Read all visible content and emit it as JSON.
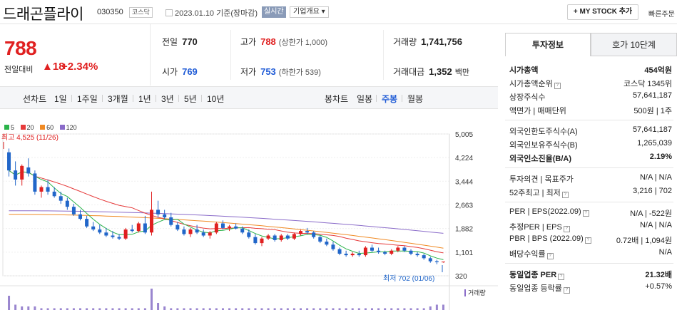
{
  "header": {
    "company_name": "드래곤플라이",
    "code": "030350",
    "market": "코스닥",
    "date_text": "2023.01.10 기준(장마감)",
    "realtime_label": "실시간",
    "company_info_label": "기업개요 ▾",
    "mystock_label": "+ MY STOCK 추가",
    "quick_order_label": "빠른주문"
  },
  "price": {
    "current": "788",
    "change_label": "전일대비",
    "change_amount": "▲18",
    "change_pct": "+2.34%"
  },
  "summary": {
    "prev_close_label": "전일",
    "prev_close": "770",
    "high_label": "고가",
    "high": "788",
    "upper_limit": "(상한가 1,000)",
    "volume_label": "거래량",
    "volume": "1,741,756",
    "open_label": "시가",
    "open": "769",
    "low_label": "저가",
    "low": "753",
    "lower_limit": "(하한가 539)",
    "amount_label": "거래대금",
    "amount": "1,352",
    "amount_unit": "백만"
  },
  "chart_tabs": {
    "line_label": "선차트",
    "line_periods": [
      "1일",
      "1주일",
      "3개월",
      "1년",
      "3년",
      "5년",
      "10년"
    ],
    "candle_label": "봉차트",
    "candle_periods": [
      "일봉",
      "주봉",
      "월봉"
    ],
    "active_candle": "주봉"
  },
  "chart_data": {
    "type": "candlestick",
    "legend": [
      {
        "name": "5",
        "color": "#2bb34a"
      },
      {
        "name": "20",
        "color": "#e63b3b"
      },
      {
        "name": "60",
        "color": "#f08a24"
      },
      {
        "name": "120",
        "color": "#8a6bc9"
      }
    ],
    "y_ticks": [
      "5,005",
      "4,224",
      "3,444",
      "2,663",
      "1,882",
      "1,101",
      "320"
    ],
    "y_tick_values": [
      5005,
      4224,
      3444,
      2663,
      1882,
      1101,
      320
    ],
    "ylim": [
      320,
      5005
    ],
    "high_annotation": "최고 4,525 (11/26)",
    "low_annotation": "최저 702 (01/06)",
    "volume_label": "거래량",
    "colors": {
      "up": "#e02020",
      "down": "#2166c9",
      "ma5": "#2bb34a",
      "ma20": "#e63b3b",
      "ma60": "#f08a24",
      "ma120": "#8a6bc9"
    },
    "candles": [
      [
        4400,
        4525,
        3600,
        3800
      ],
      [
        3800,
        4100,
        3300,
        3500
      ],
      [
        3500,
        4000,
        3300,
        3950
      ],
      [
        3900,
        4200,
        3600,
        3700
      ],
      [
        3700,
        3800,
        3000,
        3100
      ],
      [
        3100,
        3300,
        2900,
        3250
      ],
      [
        3250,
        3500,
        3000,
        3100
      ],
      [
        3100,
        3250,
        2900,
        2950
      ],
      [
        2950,
        3100,
        2700,
        2800
      ],
      [
        2800,
        2900,
        2500,
        2600
      ],
      [
        2600,
        2700,
        2300,
        2350
      ],
      [
        2350,
        2500,
        2150,
        2200
      ],
      [
        2200,
        2300,
        1900,
        1950
      ],
      [
        1950,
        2100,
        1800,
        1850
      ],
      [
        1850,
        2000,
        1700,
        1750
      ],
      [
        1750,
        1900,
        1600,
        1650
      ],
      [
        1650,
        1800,
        1550,
        1600
      ],
      [
        1600,
        1700,
        1500,
        1550
      ],
      [
        1550,
        1900,
        1500,
        1850
      ],
      [
        1850,
        2000,
        1750,
        1800
      ],
      [
        1800,
        2100,
        1750,
        2050
      ],
      [
        2050,
        2300,
        1700,
        1750
      ],
      [
        1750,
        3100,
        1650,
        2500
      ],
      [
        2500,
        2800,
        2250,
        2350
      ],
      [
        2350,
        2500,
        2200,
        2250
      ],
      [
        2250,
        2400,
        1950,
        2000
      ],
      [
        2000,
        2100,
        1800,
        1850
      ],
      [
        1850,
        1950,
        1650,
        1700
      ],
      [
        1700,
        1900,
        1600,
        1850
      ],
      [
        1850,
        2000,
        1700,
        1750
      ],
      [
        1750,
        1850,
        1600,
        1650
      ],
      [
        1650,
        1800,
        1550,
        1750
      ],
      [
        1750,
        2100,
        1700,
        2050
      ],
      [
        2050,
        2150,
        1850,
        1900
      ],
      [
        1900,
        2000,
        1800,
        1950
      ],
      [
        1950,
        2050,
        1850,
        1880
      ],
      [
        1880,
        1950,
        1700,
        1750
      ],
      [
        1750,
        1850,
        1550,
        1600
      ],
      [
        1600,
        1700,
        1350,
        1400
      ],
      [
        1400,
        1600,
        1300,
        1550
      ],
      [
        1550,
        1700,
        1500,
        1650
      ],
      [
        1650,
        1700,
        1450,
        1500
      ],
      [
        1500,
        1700,
        1450,
        1650
      ],
      [
        1650,
        1700,
        1500,
        1550
      ],
      [
        1550,
        1750,
        1500,
        1700
      ],
      [
        1700,
        1850,
        1650,
        1800
      ],
      [
        1800,
        1900,
        1700,
        1750
      ],
      [
        1750,
        1800,
        1550,
        1600
      ],
      [
        1600,
        1650,
        1400,
        1450
      ],
      [
        1450,
        1550,
        1300,
        1350
      ],
      [
        1350,
        1450,
        1150,
        1200
      ],
      [
        1200,
        1250,
        1000,
        1050
      ],
      [
        1050,
        1150,
        950,
        1000
      ],
      [
        1000,
        1100,
        950,
        1050
      ],
      [
        1050,
        1150,
        950,
        1000
      ],
      [
        1000,
        1300,
        950,
        1250
      ],
      [
        1250,
        1350,
        1100,
        1150
      ],
      [
        1150,
        1250,
        1050,
        1100
      ],
      [
        1100,
        1150,
        1000,
        1050
      ],
      [
        1050,
        1200,
        1000,
        1150
      ],
      [
        1150,
        1300,
        1100,
        1250
      ],
      [
        1250,
        1300,
        1100,
        1150
      ],
      [
        1150,
        1200,
        1000,
        1050
      ],
      [
        1050,
        1100,
        950,
        1000
      ],
      [
        1000,
        1050,
        850,
        900
      ],
      [
        900,
        950,
        750,
        800
      ],
      [
        800,
        850,
        702,
        770
      ],
      [
        769,
        788,
        753,
        788
      ]
    ],
    "volumes": [
      8,
      3,
      2,
      2,
      2,
      1,
      1,
      1,
      1,
      1,
      1,
      1,
      1,
      1,
      1,
      1,
      1,
      1,
      1,
      1,
      1,
      1,
      12,
      4,
      2,
      1,
      1,
      1,
      1,
      1,
      1,
      1,
      1,
      1,
      1,
      1,
      1,
      1,
      1,
      1,
      1,
      1,
      1,
      1,
      1,
      1,
      1,
      1,
      1,
      1,
      1,
      1,
      1,
      1,
      1,
      1,
      1,
      1,
      1,
      1,
      1,
      1,
      1,
      1,
      1,
      2,
      3,
      3
    ]
  },
  "invest_info": {
    "tab_active": "투자정보",
    "tab_other": "호가 10단계",
    "rows": [
      {
        "k": "시가총액",
        "v": "454억원",
        "bold": true
      },
      {
        "k": "시가총액순위",
        "v": "코스닥 1345위",
        "q": true
      },
      {
        "k": "상장주식수",
        "v": "57,641,187"
      },
      {
        "k": "액면가 | 매매단위",
        "v": "500원 | 1주"
      }
    ],
    "foreign_rows": [
      {
        "k": "외국인한도주식수(A)",
        "v": "57,641,187"
      },
      {
        "k": "외국인보유주식수(B)",
        "v": "1,265,039"
      },
      {
        "k": "외국인소진율(B/A)",
        "v": "2.19%",
        "bold": true
      }
    ],
    "opinion_rows": [
      {
        "k": "투자의견 | 목표주가",
        "v": "N/A | N/A"
      },
      {
        "k": "52주최고 | 최저",
        "v": "3,216 | 702",
        "q": true
      }
    ],
    "per_rows": [
      {
        "k": "PER | EPS(2022.09)",
        "v": "N/A | -522원",
        "q": true
      },
      {
        "k": "추정PER | EPS",
        "v": "N/A | N/A",
        "q": true
      },
      {
        "k": "PBR | BPS (2022.09)",
        "v": "0.72배 | 1,094원",
        "q": true
      },
      {
        "k": "배당수익률",
        "v": "N/A",
        "q": true
      }
    ],
    "sector_rows": [
      {
        "k": "동일업종 PER",
        "v": "21.32배",
        "q": true,
        "bold": true
      },
      {
        "k": "동일업종 등락률",
        "v": "+0.57%",
        "q": true,
        "red": true
      }
    ]
  }
}
